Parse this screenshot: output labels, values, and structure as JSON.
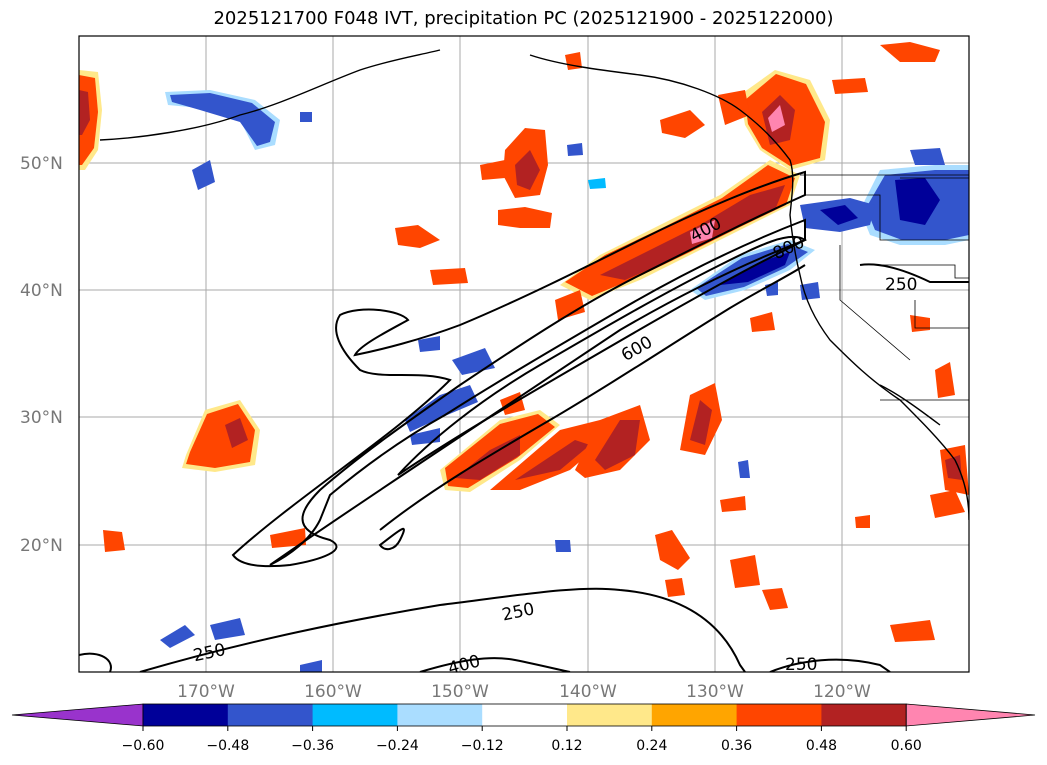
{
  "title": "2025121700 F048 IVT, precipitation PC (2025121900 - 2025122000)",
  "lat_labels": [
    "50°N",
    "40°N",
    "30°N",
    "20°N"
  ],
  "lon_labels": [
    "170°W",
    "160°W",
    "150°W",
    "140°W",
    "130°W",
    "120°W"
  ],
  "contour_labels": [
    "400",
    "600",
    "800",
    "250",
    "250",
    "250",
    "400",
    "250"
  ],
  "colorbar": {
    "ticks": [
      "−0.60",
      "−0.48",
      "−0.36",
      "−0.24",
      "−0.12",
      "0.12",
      "0.24",
      "0.36",
      "0.48",
      "0.60"
    ],
    "colors": [
      "#9933cc",
      "#000099",
      "#3355cc",
      "#00bbff",
      "#aaddff",
      "#ffffff",
      "#ffe88a",
      "#ffa500",
      "#ff4500",
      "#b22222",
      "#ff85b0"
    ]
  },
  "colors": {
    "pos_low": "#ffe88a",
    "pos_mid": "#ffa500",
    "pos_high": "#ff4500",
    "pos_higher": "#b22222",
    "pos_max": "#ff85b0",
    "neg_low": "#aaddff",
    "neg_mid": "#00bbff",
    "neg_high": "#3355cc",
    "neg_max": "#000099"
  }
}
